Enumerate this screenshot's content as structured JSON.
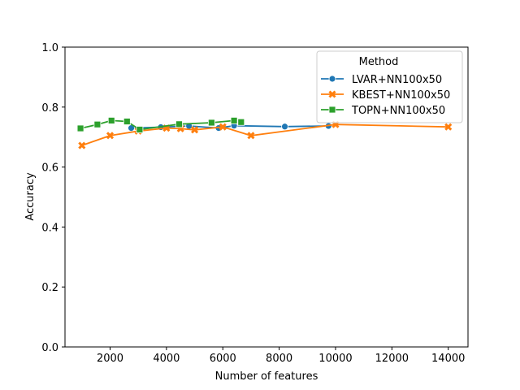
{
  "chart_data": {
    "type": "line",
    "title": "",
    "xlabel": "Number of features",
    "ylabel": "Accuracy",
    "xlim": [
      400,
      14700
    ],
    "ylim": [
      0.0,
      1.0
    ],
    "xticks": [
      2000,
      4000,
      6000,
      8000,
      10000,
      12000,
      14000
    ],
    "xtick_labels": [
      "2000",
      "4000",
      "6000",
      "8000",
      "10000",
      "12000",
      "14000"
    ],
    "yticks": [
      0.0,
      0.2,
      0.4,
      0.6,
      0.8,
      1.0
    ],
    "ytick_labels": [
      "0.0",
      "0.2",
      "0.4",
      "0.6",
      "0.8",
      "1.0"
    ],
    "grid": false,
    "legend": {
      "title": "Method",
      "placement": "upper right"
    },
    "series": [
      {
        "name": "LVAR+NN100x50",
        "color": "#1f77b4",
        "marker": "circle",
        "x": [
          2750,
          3800,
          4800,
          5850,
          6400,
          8200,
          9750
        ],
        "y": [
          0.73,
          0.733,
          0.737,
          0.73,
          0.738,
          0.735,
          0.737
        ]
      },
      {
        "name": "KBEST+NN100x50",
        "color": "#ff7f0e",
        "marker": "x",
        "x": [
          1000,
          2000,
          3000,
          4000,
          4500,
          5000,
          6000,
          7000,
          10000,
          14000
        ],
        "y": [
          0.672,
          0.705,
          0.72,
          0.73,
          0.728,
          0.724,
          0.734,
          0.705,
          0.742,
          0.734
        ]
      },
      {
        "name": "TOPN+NN100x50",
        "color": "#2ca02c",
        "marker": "square",
        "x": [
          950,
          1550,
          2050,
          2600,
          3050,
          4450,
          5600,
          6400,
          6650
        ],
        "y": [
          0.729,
          0.742,
          0.755,
          0.752,
          0.725,
          0.743,
          0.748,
          0.755,
          0.75
        ]
      }
    ]
  }
}
